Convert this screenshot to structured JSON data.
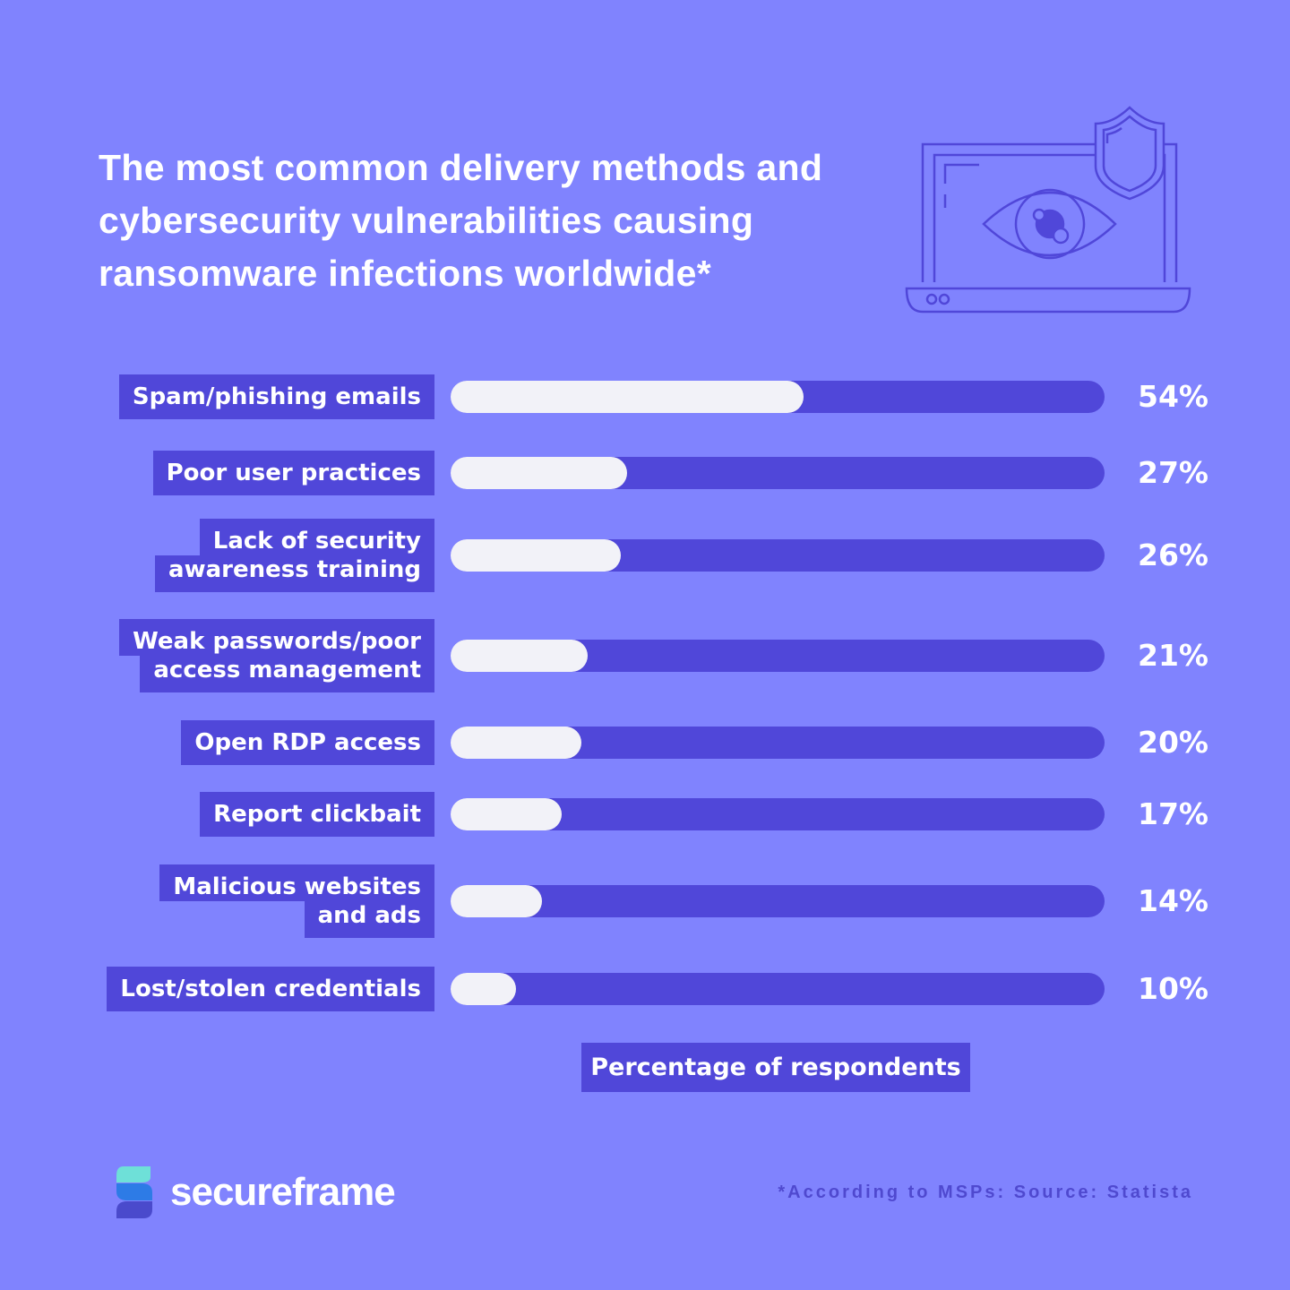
{
  "title_lines": [
    "The most common delivery methods and",
    "cybersecurity vulnerabilities causing",
    "ransomware infections worldwide*"
  ],
  "colors": {
    "background": "#8083fe",
    "bar_track": "#5047d9",
    "bar_fill": "#f2f2f8",
    "label_box": "#5047d9",
    "logo_top": "#6ee0d8",
    "logo_mid": "#2d7be6",
    "logo_bottom": "#4a4acc"
  },
  "icons": {
    "header_illustration": "laptop-eye-shield-icon",
    "logo": "secureframe-logo-icon"
  },
  "chart_data": {
    "type": "bar",
    "orientation": "horizontal",
    "title": "The most common delivery methods and cybersecurity vulnerabilities causing ransomware infections worldwide*",
    "categories": [
      [
        "Spam/phishing emails"
      ],
      [
        "Poor user practices"
      ],
      [
        "Lack of security",
        "awareness training"
      ],
      [
        "Weak passwords/poor",
        "access management"
      ],
      [
        "Open RDP access"
      ],
      [
        "Report clickbait"
      ],
      [
        "Malicious websites",
        "and ads"
      ],
      [
        "Lost/stolen credentials"
      ]
    ],
    "values": [
      54,
      27,
      26,
      21,
      20,
      17,
      14,
      10
    ],
    "value_labels": [
      "54%",
      "27%",
      "26%",
      "21%",
      "20%",
      "17%",
      "14%",
      "10%"
    ],
    "xlabel": "Percentage of respondents",
    "xlim": [
      0,
      100
    ],
    "grid": false
  },
  "footer": {
    "brand": "secureframe",
    "source": "*According to MSPs: Source: Statista"
  }
}
